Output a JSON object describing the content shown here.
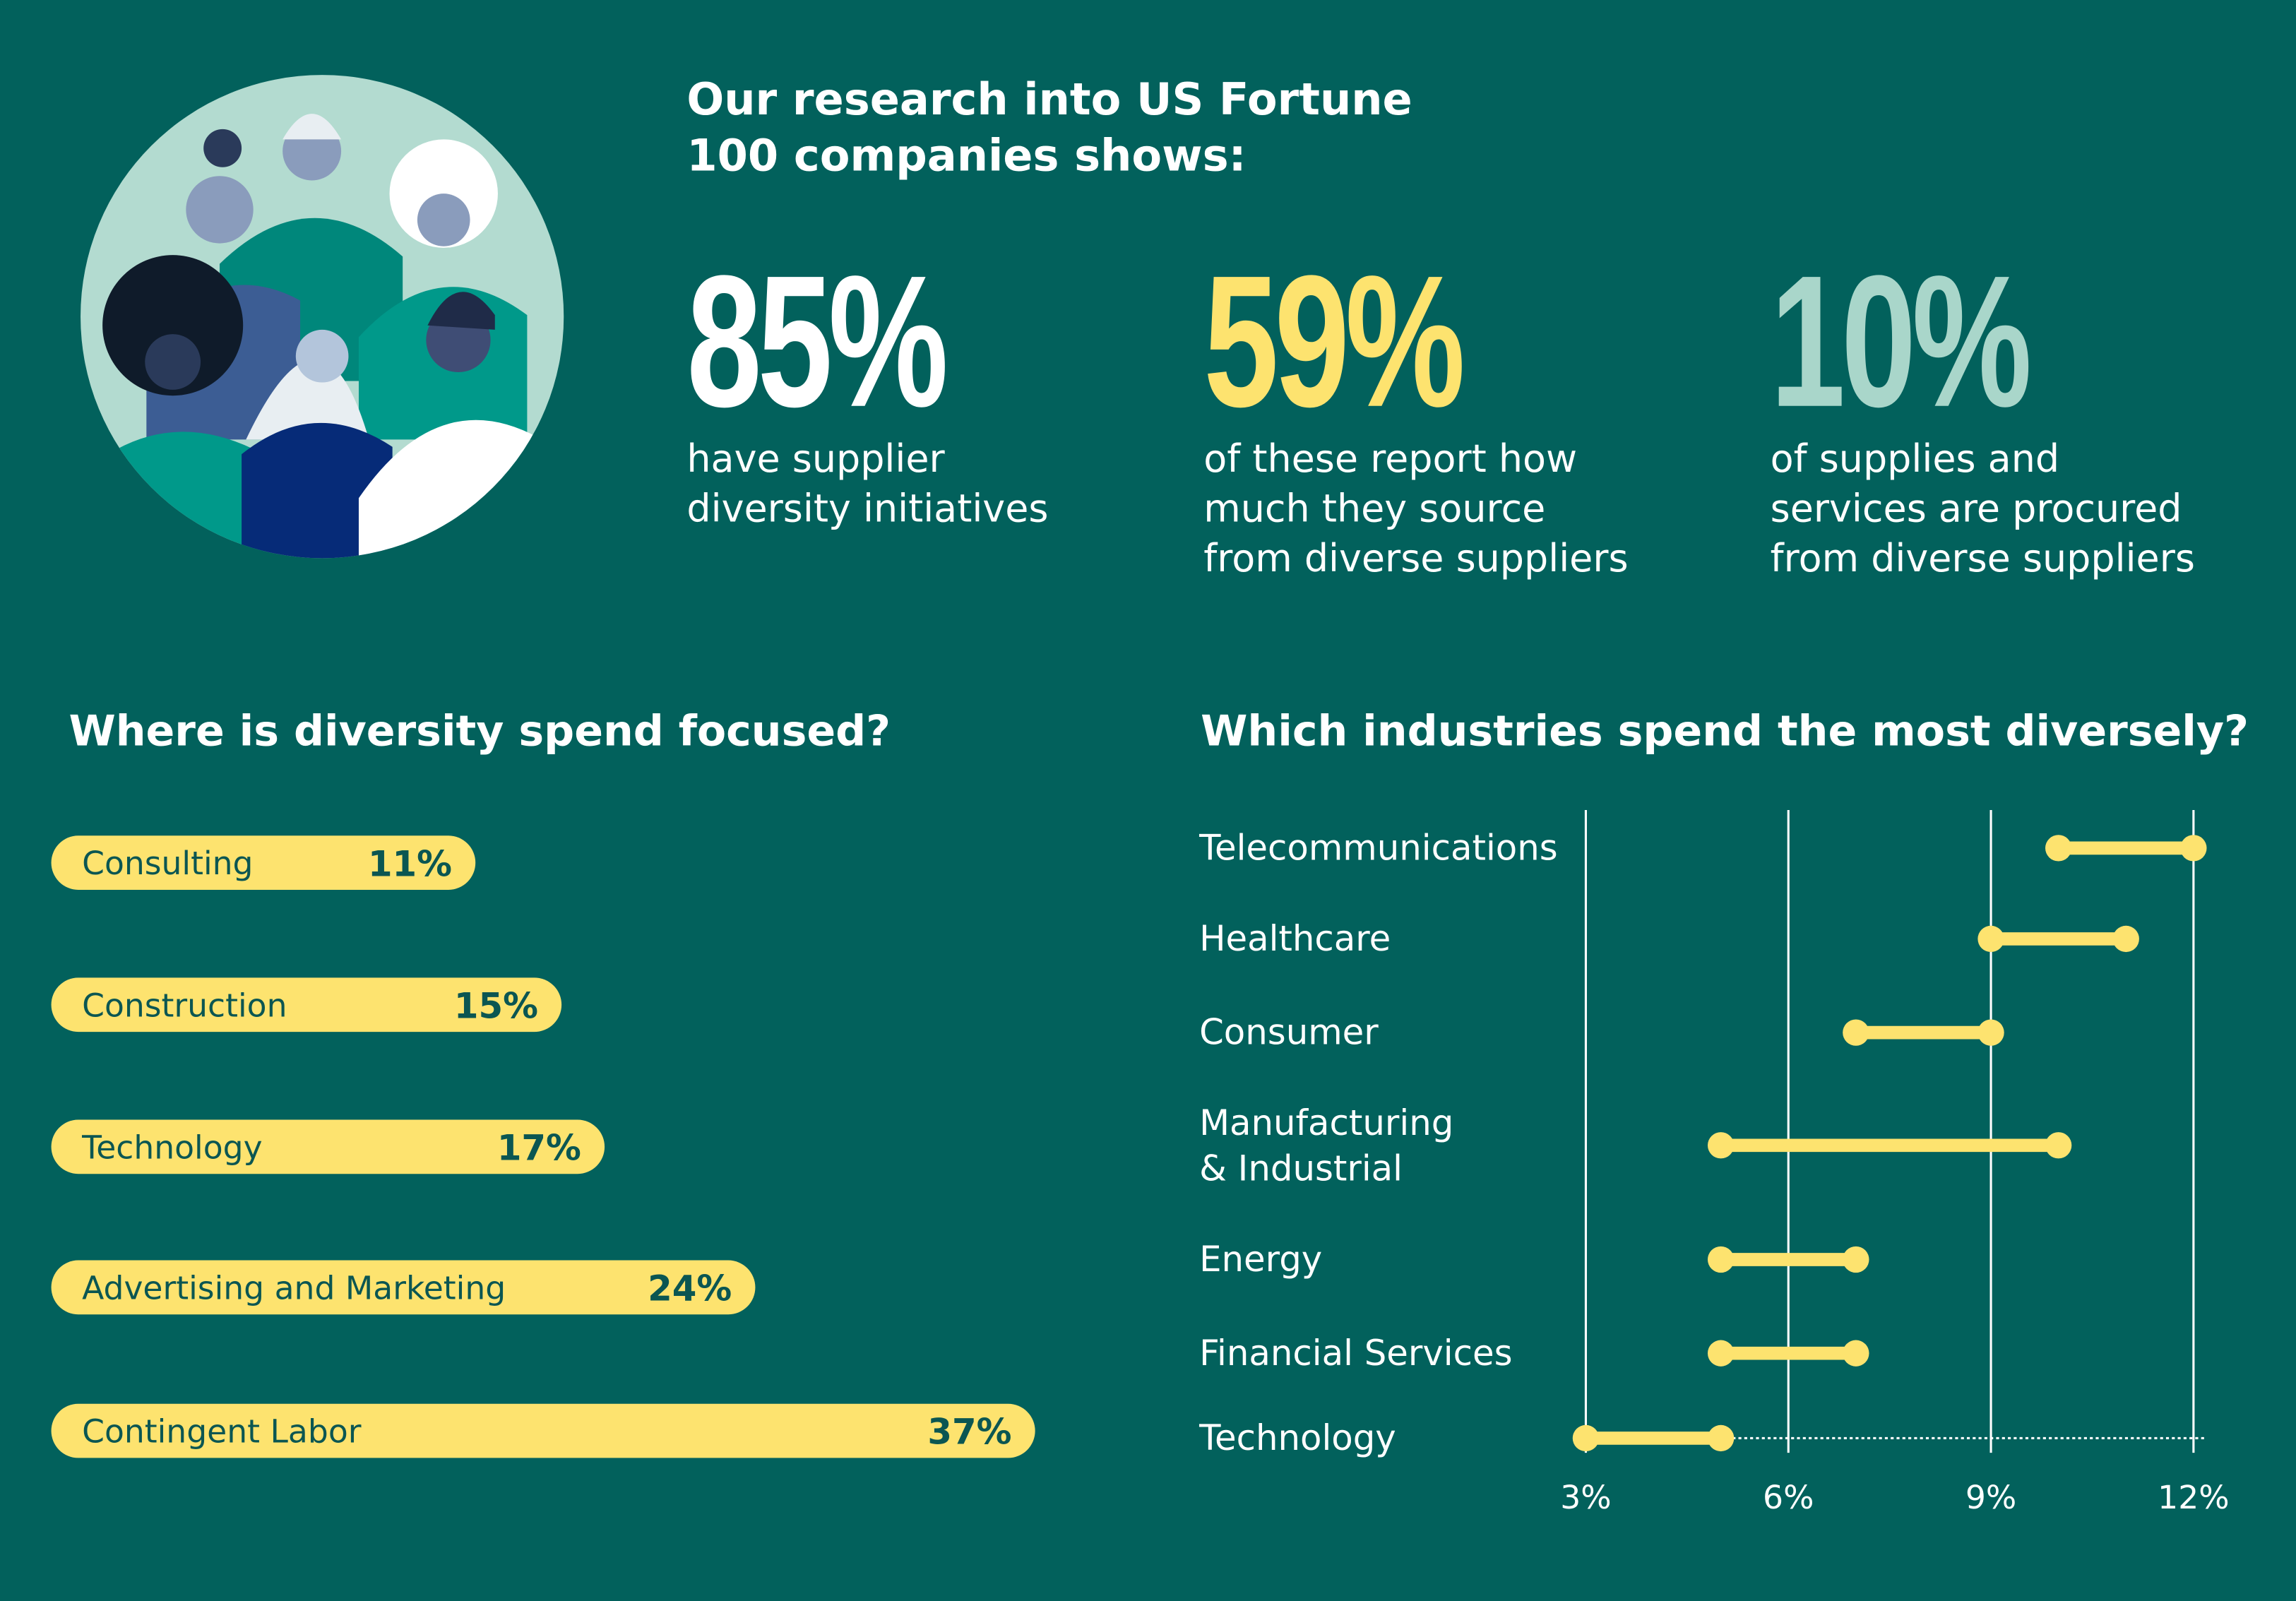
{
  "header": {
    "title": "Our research into US Fortune\n100 companies shows:"
  },
  "stats": [
    {
      "value": "85%",
      "text": "have supplier\ndiversity initiatives",
      "color": "#ffffff"
    },
    {
      "value": "59%",
      "text": "of these report how\nmuch they source\nfrom diverse suppliers",
      "color": "#fde36f"
    },
    {
      "value": "10%",
      "text": "of supplies and\nservices are procured\nfrom diverse suppliers",
      "color": "#a9d6ca"
    }
  ],
  "chart_data": [
    {
      "type": "bar",
      "orientation": "horizontal",
      "title": "Where is diversity spend focused?",
      "categories": [
        "Consulting",
        "Construction",
        "Technology",
        "Advertising and Marketing",
        "Contingent Labor"
      ],
      "values": [
        11,
        15,
        17,
        24,
        37
      ],
      "value_labels": [
        "11%",
        "15%",
        "17%",
        "24%",
        "37%"
      ],
      "color": "#fde36f"
    },
    {
      "type": "dumbbell",
      "title": "Which industries spend the most diversely?",
      "categories": [
        "Telecommunications",
        "Healthcare",
        "Consumer",
        "Manufacturing\n& Industrial",
        "Energy",
        "Financial Services",
        "Technology"
      ],
      "low": [
        10,
        9,
        7,
        5,
        5,
        5,
        3
      ],
      "high": [
        12,
        11,
        9,
        10,
        7,
        7,
        5
      ],
      "color": "#fde36f",
      "xlim": [
        3,
        12
      ],
      "xticks": [
        {
          "value": 3,
          "label": "3%"
        },
        {
          "value": 6,
          "label": "6%"
        },
        {
          "value": 9,
          "label": "9%"
        },
        {
          "value": 12,
          "label": "12%"
        }
      ],
      "grid": true
    }
  ]
}
